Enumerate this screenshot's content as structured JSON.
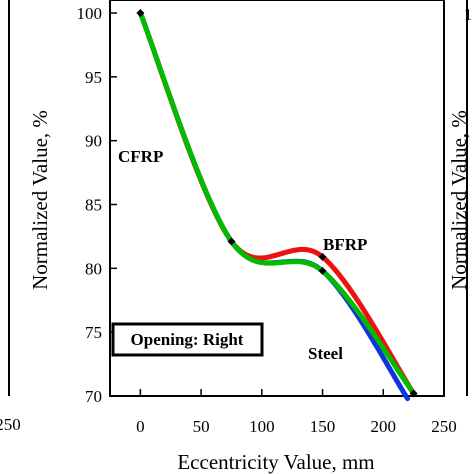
{
  "chart_data": {
    "type": "line",
    "xlabel": "Eccentricity Value, mm",
    "ylabel": "Normalized Value, %",
    "xlim": [
      -25,
      250
    ],
    "ylim": [
      70,
      100
    ],
    "xticks": [
      0,
      50,
      100,
      150,
      200,
      250
    ],
    "yticks": [
      100,
      95,
      90,
      85,
      80,
      75,
      70
    ],
    "grid": false,
    "series": [
      {
        "name": "CFRP",
        "color": "#00bb00",
        "x": [
          0,
          75,
          150,
          225
        ],
        "y": [
          100,
          82.1,
          79.8,
          70.2
        ]
      },
      {
        "name": "BFRP",
        "color": "#ee1111",
        "x": [
          0,
          75,
          150,
          225
        ],
        "y": [
          100,
          82.1,
          80.9,
          70.2
        ]
      },
      {
        "name": "Steel",
        "color": "#1133dd",
        "x": [
          0,
          75,
          150,
          220
        ],
        "y": [
          100,
          82.1,
          79.8,
          69.8
        ]
      }
    ],
    "marker_points": [
      [
        0,
        100
      ],
      [
        75,
        82.1
      ],
      [
        150,
        80.9
      ],
      [
        150,
        79.8
      ],
      [
        225,
        70.2
      ]
    ],
    "annotations": {
      "box_label": "Opening: Right",
      "cfrp_label": "CFRP",
      "bfrp_label": "BFRP",
      "steel_label": "Steel",
      "left_panel_tick": "250",
      "right_panel_tick": "1"
    }
  }
}
